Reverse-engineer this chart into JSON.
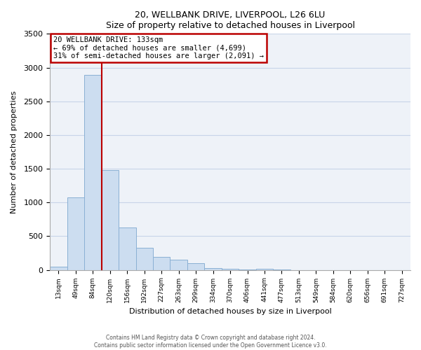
{
  "title": "20, WELLBANK DRIVE, LIVERPOOL, L26 6LU",
  "subtitle": "Size of property relative to detached houses in Liverpool",
  "xlabel": "Distribution of detached houses by size in Liverpool",
  "ylabel": "Number of detached properties",
  "bar_labels": [
    "13sqm",
    "49sqm",
    "84sqm",
    "120sqm",
    "156sqm",
    "192sqm",
    "227sqm",
    "263sqm",
    "299sqm",
    "334sqm",
    "370sqm",
    "406sqm",
    "441sqm",
    "477sqm",
    "513sqm",
    "549sqm",
    "584sqm",
    "620sqm",
    "656sqm",
    "691sqm",
    "727sqm"
  ],
  "bar_heights": [
    45,
    1080,
    2890,
    1480,
    630,
    330,
    195,
    150,
    100,
    30,
    15,
    5,
    20,
    5,
    0,
    0,
    0,
    0,
    0,
    0,
    0
  ],
  "bar_color": "#ccddf0",
  "bar_edge_color": "#8ab0d4",
  "grid_color": "#c8d4e8",
  "bg_color": "#eef2f8",
  "vline_x_idx": 2.5,
  "vline_color": "#bb0000",
  "annotation_title": "20 WELLBANK DRIVE: 133sqm",
  "annotation_line1": "← 69% of detached houses are smaller (4,699)",
  "annotation_line2": "31% of semi-detached houses are larger (2,091) →",
  "annotation_box_color": "#bb0000",
  "ylim": [
    0,
    3500
  ],
  "yticks": [
    0,
    500,
    1000,
    1500,
    2000,
    2500,
    3000,
    3500
  ],
  "footer1": "Contains HM Land Registry data © Crown copyright and database right 2024.",
  "footer2": "Contains public sector information licensed under the Open Government Licence v3.0."
}
